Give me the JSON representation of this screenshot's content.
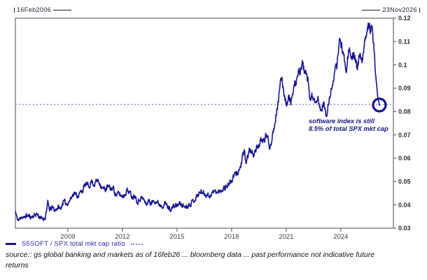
{
  "header": {
    "start_date": "16Feb2006",
    "end_date": "23Nov2026"
  },
  "legend": {
    "label": "S5SOFT / SPX total mkt cap ratio"
  },
  "annotation": {
    "line1": "software index is still",
    "line2": "8.5% of total SPX mkt cap"
  },
  "source": {
    "line1": "source:: gs global banking and markets as of 16feb26 ... bloomberg data ... past performance not indicative future",
    "line2": "returns"
  },
  "colors": {
    "line": "#14148f",
    "dotted": "#8c8cd7",
    "annotation": "#15157e",
    "frame": "#4a4a4a",
    "y_label": "#2b2b38",
    "x_label": "#3d3d35"
  },
  "chart_data": {
    "type": "line",
    "title": "",
    "xlabel": "",
    "ylabel": "",
    "grid": false,
    "legend_position": "bottom-left",
    "x_range_years": [
      2006.12,
      2026.89
    ],
    "x_ticks": [
      2009,
      2012,
      2015,
      2018,
      2021,
      2024
    ],
    "y_tick_values": [
      0.03,
      0.04,
      0.05,
      0.06,
      0.07,
      0.08,
      0.09,
      0.1,
      0.11,
      0.12
    ],
    "y_tick_labels": [
      "0.03",
      "0.04",
      "0.05",
      "0.06",
      "0.07",
      "0.08",
      "0.09",
      "0.1",
      "0.11",
      "0.12"
    ],
    "ylim": [
      0.03,
      0.12
    ],
    "dotted_line_value": 0.083,
    "endpoint": {
      "year": 2026.12,
      "value": 0.0828,
      "marker": "circle"
    },
    "series": [
      {
        "name": "S5SOFT / SPX total mkt cap ratio",
        "points": [
          [
            2006.12,
            0.0372
          ],
          [
            2006.2,
            0.0345
          ],
          [
            2006.3,
            0.0332
          ],
          [
            2006.45,
            0.0352
          ],
          [
            2006.6,
            0.0342
          ],
          [
            2006.7,
            0.0355
          ],
          [
            2006.85,
            0.0352
          ],
          [
            2007.0,
            0.0348
          ],
          [
            2007.15,
            0.0355
          ],
          [
            2007.3,
            0.0362
          ],
          [
            2007.45,
            0.0348
          ],
          [
            2007.6,
            0.0338
          ],
          [
            2007.75,
            0.0345
          ],
          [
            2007.9,
            0.0408
          ],
          [
            2008.0,
            0.0378
          ],
          [
            2008.15,
            0.0388
          ],
          [
            2008.3,
            0.0375
          ],
          [
            2008.45,
            0.0392
          ],
          [
            2008.6,
            0.0382
          ],
          [
            2008.75,
            0.0415
          ],
          [
            2008.9,
            0.0405
          ],
          [
            2009.05,
            0.0412
          ],
          [
            2009.2,
            0.0432
          ],
          [
            2009.35,
            0.0455
          ],
          [
            2009.5,
            0.0438
          ],
          [
            2009.65,
            0.0448
          ],
          [
            2009.8,
            0.0462
          ],
          [
            2010.0,
            0.049
          ],
          [
            2010.15,
            0.0478
          ],
          [
            2010.3,
            0.0502
          ],
          [
            2010.45,
            0.0488
          ],
          [
            2010.6,
            0.0505
          ],
          [
            2010.75,
            0.0495
          ],
          [
            2010.9,
            0.0472
          ],
          [
            2011.05,
            0.0465
          ],
          [
            2011.2,
            0.0478
          ],
          [
            2011.35,
            0.0468
          ],
          [
            2011.5,
            0.0472
          ],
          [
            2011.65,
            0.0442
          ],
          [
            2011.8,
            0.0448
          ],
          [
            2011.95,
            0.0438
          ],
          [
            2012.1,
            0.0442
          ],
          [
            2012.25,
            0.0465
          ],
          [
            2012.4,
            0.0452
          ],
          [
            2012.55,
            0.0435
          ],
          [
            2012.7,
            0.0442
          ],
          [
            2012.85,
            0.0412
          ],
          [
            2013.0,
            0.0432
          ],
          [
            2013.15,
            0.0425
          ],
          [
            2013.3,
            0.0402
          ],
          [
            2013.45,
            0.0418
          ],
          [
            2013.6,
            0.0405
          ],
          [
            2013.75,
            0.0422
          ],
          [
            2013.9,
            0.0412
          ],
          [
            2014.05,
            0.0402
          ],
          [
            2014.2,
            0.0398
          ],
          [
            2014.35,
            0.0408
          ],
          [
            2014.5,
            0.039
          ],
          [
            2014.65,
            0.0382
          ],
          [
            2014.8,
            0.0392
          ],
          [
            2015.0,
            0.0398
          ],
          [
            2015.15,
            0.0405
          ],
          [
            2015.3,
            0.0398
          ],
          [
            2015.45,
            0.0392
          ],
          [
            2015.6,
            0.0398
          ],
          [
            2015.75,
            0.0408
          ],
          [
            2015.9,
            0.0418
          ],
          [
            2016.05,
            0.0432
          ],
          [
            2016.2,
            0.0448
          ],
          [
            2016.35,
            0.0458
          ],
          [
            2016.5,
            0.0448
          ],
          [
            2016.65,
            0.0445
          ],
          [
            2016.8,
            0.0438
          ],
          [
            2016.95,
            0.0452
          ],
          [
            2017.1,
            0.0458
          ],
          [
            2017.25,
            0.0452
          ],
          [
            2017.4,
            0.0462
          ],
          [
            2017.55,
            0.0472
          ],
          [
            2017.7,
            0.0478
          ],
          [
            2017.85,
            0.0492
          ],
          [
            2018.0,
            0.0502
          ],
          [
            2018.15,
            0.0525
          ],
          [
            2018.3,
            0.0538
          ],
          [
            2018.45,
            0.0552
          ],
          [
            2018.6,
            0.0602
          ],
          [
            2018.7,
            0.0625
          ],
          [
            2018.8,
            0.0578
          ],
          [
            2018.9,
            0.0615
          ],
          [
            2019.0,
            0.0635
          ],
          [
            2019.15,
            0.0618
          ],
          [
            2019.3,
            0.0628
          ],
          [
            2019.45,
            0.0655
          ],
          [
            2019.6,
            0.0668
          ],
          [
            2019.75,
            0.0672
          ],
          [
            2019.9,
            0.0698
          ],
          [
            2020.0,
            0.0682
          ],
          [
            2020.1,
            0.0645
          ],
          [
            2020.2,
            0.0682
          ],
          [
            2020.35,
            0.0745
          ],
          [
            2020.5,
            0.0815
          ],
          [
            2020.65,
            0.0892
          ],
          [
            2020.75,
            0.095
          ],
          [
            2020.85,
            0.0898
          ],
          [
            2020.95,
            0.0852
          ],
          [
            2021.05,
            0.0835
          ],
          [
            2021.15,
            0.086
          ],
          [
            2021.25,
            0.0843
          ],
          [
            2021.35,
            0.0868
          ],
          [
            2021.5,
            0.0918
          ],
          [
            2021.65,
            0.0952
          ],
          [
            2021.8,
            0.0988
          ],
          [
            2021.9,
            0.1002
          ],
          [
            2022.0,
            0.0975
          ],
          [
            2022.1,
            0.0948
          ],
          [
            2022.2,
            0.0928
          ],
          [
            2022.3,
            0.0845
          ],
          [
            2022.45,
            0.0875
          ],
          [
            2022.6,
            0.0818
          ],
          [
            2022.75,
            0.0855
          ],
          [
            2022.9,
            0.0798
          ],
          [
            2023.05,
            0.0838
          ],
          [
            2023.2,
            0.0775
          ],
          [
            2023.35,
            0.0842
          ],
          [
            2023.5,
            0.0895
          ],
          [
            2023.6,
            0.0948
          ],
          [
            2023.7,
            0.0998
          ],
          [
            2023.78,
            0.0972
          ],
          [
            2023.87,
            0.1068
          ],
          [
            2023.95,
            0.1118
          ],
          [
            2024.05,
            0.1078
          ],
          [
            2024.15,
            0.1038
          ],
          [
            2024.3,
            0.0988
          ],
          [
            2024.45,
            0.1078
          ],
          [
            2024.6,
            0.1018
          ],
          [
            2024.75,
            0.1048
          ],
          [
            2024.9,
            0.0978
          ],
          [
            2025.05,
            0.1038
          ],
          [
            2025.2,
            0.1008
          ],
          [
            2025.35,
            0.1122
          ],
          [
            2025.45,
            0.1152
          ],
          [
            2025.55,
            0.1188
          ],
          [
            2025.62,
            0.1158
          ],
          [
            2025.7,
            0.1178
          ],
          [
            2025.78,
            0.1098
          ],
          [
            2025.84,
            0.1052
          ],
          [
            2025.89,
            0.0978
          ],
          [
            2025.96,
            0.0918
          ],
          [
            2026.04,
            0.0858
          ],
          [
            2026.12,
            0.0828
          ]
        ]
      }
    ]
  }
}
